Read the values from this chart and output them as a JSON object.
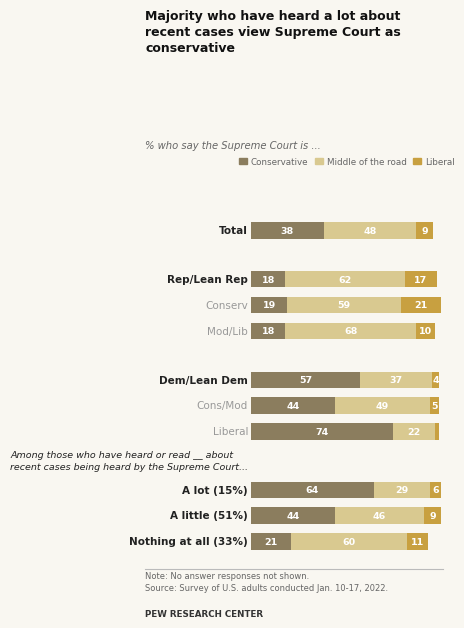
{
  "title": "Majority who have heard a lot about\nrecent cases view Supreme Court as\nconservative",
  "subtitle": "% who say the Supreme Court is ...",
  "legend_labels": [
    "Conservative",
    "Middle of the road",
    "Liberal"
  ],
  "colors": [
    "#8b7d5e",
    "#d9c990",
    "#c8a040"
  ],
  "categories": [
    "Total",
    "Rep/Lean Rep",
    "Conserv",
    "Mod/Lib",
    "Dem/Lean Dem",
    "Cons/Mod",
    "Liberal",
    "A lot (15%)",
    "A little (51%)",
    "Nothing at all (33%)"
  ],
  "bold_categories": [
    "Total",
    "Rep/Lean Rep",
    "Dem/Lean Dem",
    "A lot (15%)",
    "A little (51%)",
    "Nothing at all (33%)"
  ],
  "values": [
    [
      38,
      48,
      9
    ],
    [
      18,
      62,
      17
    ],
    [
      19,
      59,
      21
    ],
    [
      18,
      68,
      10
    ],
    [
      57,
      37,
      4
    ],
    [
      44,
      49,
      5
    ],
    [
      74,
      22,
      2
    ],
    [
      64,
      29,
      6
    ],
    [
      44,
      46,
      9
    ],
    [
      21,
      60,
      11
    ]
  ],
  "section2_label": "Among those who have heard or read __ about\nrecent cases being heard by the Supreme Court...",
  "note": "Note: No answer responses not shown.\nSource: Survey of U.S. adults conducted Jan. 10-17, 2022.",
  "source_bold": "PEW RESEARCH CENTER",
  "bg_color": "#f9f7f1",
  "bar_height": 0.52,
  "min_val_show": 3
}
